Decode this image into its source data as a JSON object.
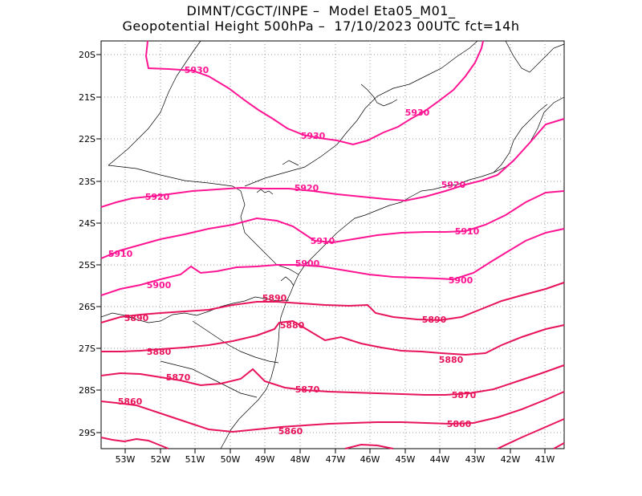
{
  "title": {
    "line1": "DIMNT/CGCT/INPE –  Model Eta05_M01_",
    "line2": "Geopotential Height 500hPa –  17/10/2023 00UTC fct=14h"
  },
  "colors": {
    "contour_a": "#ff1493",
    "contour_b": "#e8145a",
    "coast": "#000000",
    "grid": "#9a9a9a"
  },
  "axes": {
    "x_ticks": [
      "53W",
      "52W",
      "51W",
      "50W",
      "49W",
      "48W",
      "47W",
      "46W",
      "45W",
      "44W",
      "43W",
      "42W",
      "41W"
    ],
    "y_ticks": [
      "20S",
      "21S",
      "22S",
      "23S",
      "24S",
      "25S",
      "26S",
      "27S",
      "28S",
      "29S"
    ]
  },
  "contours": {
    "c5930": {
      "level": "5930",
      "labels": [
        "5930",
        "5930",
        "5930"
      ]
    },
    "c5920": {
      "level": "5920",
      "labels": [
        "5920",
        "5920",
        "5920"
      ]
    },
    "c5910": {
      "level": "5910",
      "labels": [
        "5910",
        "5910",
        "5910"
      ]
    },
    "c5900": {
      "level": "5900",
      "labels": [
        "5900",
        "5900",
        "5900"
      ]
    },
    "c5890": {
      "level": "5890",
      "labels": [
        "5890",
        "5890",
        "5890"
      ]
    },
    "c5880": {
      "level": "5880",
      "labels": [
        "5880",
        "5880",
        "5880"
      ]
    },
    "c5870": {
      "level": "5870",
      "labels": [
        "5870",
        "5870",
        "5870"
      ]
    },
    "c5860": {
      "level": "5860",
      "labels": [
        "5860",
        "5860",
        "5860"
      ]
    }
  }
}
